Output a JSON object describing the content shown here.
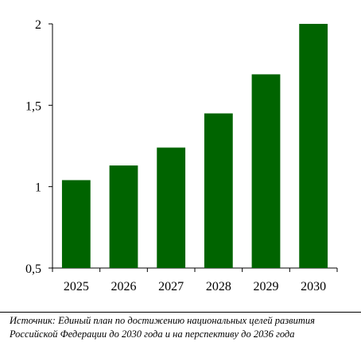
{
  "chart_data": {
    "type": "bar",
    "categories": [
      "2025",
      "2026",
      "2027",
      "2028",
      "2029",
      "2030"
    ],
    "values": [
      1.04,
      1.13,
      1.24,
      1.45,
      1.69,
      2.0
    ],
    "title": "",
    "xlabel": "",
    "ylabel": "",
    "ylim": [
      0.5,
      2
    ],
    "yticks": [
      0.5,
      1,
      1.5,
      2
    ],
    "ytick_labels": [
      "0,5",
      "1",
      "1,5",
      "2"
    ],
    "grid": false,
    "legend": "none",
    "bar_color": "#006400"
  },
  "source_note": {
    "line1": "Источник: Единый план по достижению национальных целей развития",
    "line2": "Российской Федерации до 2030 года и на перспективу до 2036 года"
  }
}
